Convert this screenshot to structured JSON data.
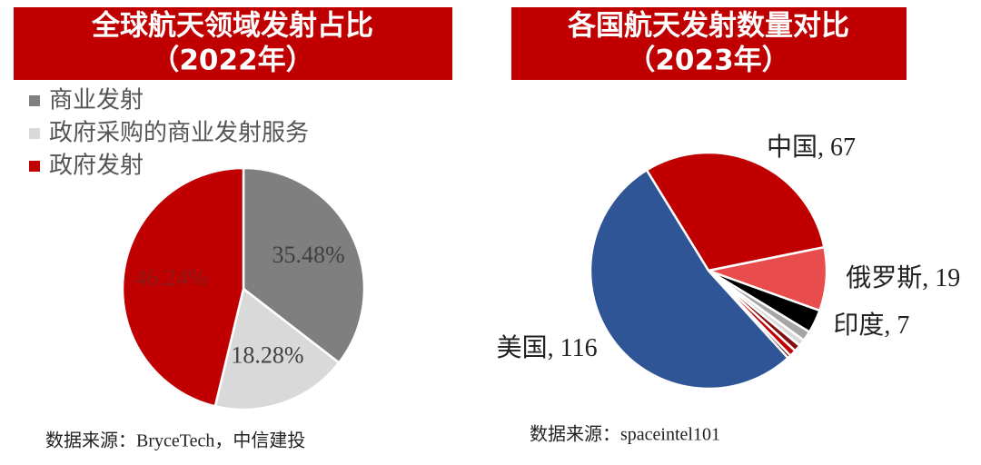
{
  "chart_data": [
    {
      "type": "pie",
      "title": "全球航天领域发射占比",
      "subtitle": "（2022年）",
      "categories": [
        "商业发射",
        "政府采购的商业发射服务",
        "政府发射"
      ],
      "values": [
        35.48,
        18.28,
        46.24
      ],
      "value_labels": [
        "35.48%",
        "18.28%",
        "46.24%"
      ],
      "colors": [
        "#7f7f7f",
        "#d9d9d9",
        "#c00000"
      ],
      "legend": "top-left",
      "source": "数据来源：BryceTech，中信建投"
    },
    {
      "type": "pie",
      "title": "各国航天发射数量对比",
      "subtitle": "（2023年）",
      "categories": [
        "中国, 67",
        "俄罗斯, 19",
        "印度, 7",
        null,
        null,
        null,
        null,
        null,
        "美国, 116"
      ],
      "values": [
        67,
        19,
        7,
        3,
        2,
        2,
        2,
        1,
        116
      ],
      "colors": [
        "#c00000",
        "#e84c4c",
        "#000000",
        "#a6a6a6",
        "#d9d9d9",
        "#7f1010",
        "#c00000",
        "#5a0000",
        "#2f5597"
      ],
      "source": "数据来源：spaceintel101"
    }
  ]
}
